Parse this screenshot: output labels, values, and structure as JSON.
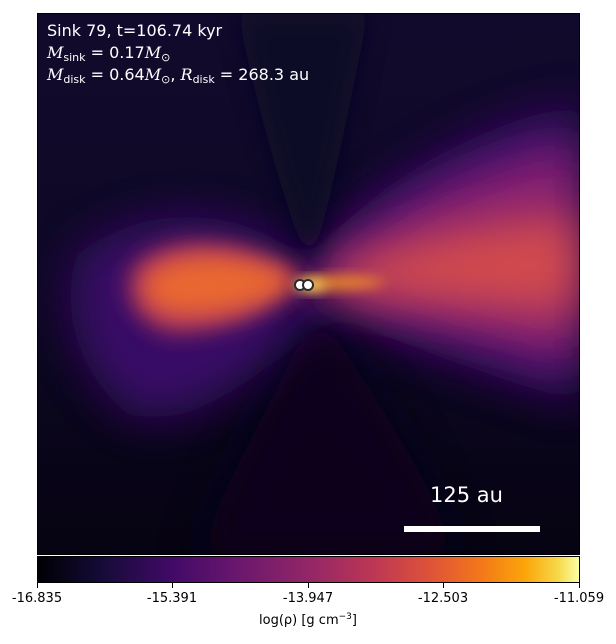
{
  "annotation": {
    "title": "Sink 79, t=106.74 kyr",
    "sink_mass_symbol": "M",
    "sink_mass_sub": "sink",
    "sink_mass_value": "0.17",
    "disk_mass_symbol": "M",
    "disk_mass_sub": "disk",
    "disk_mass_value": "0.64",
    "disk_radius_symbol": "R",
    "disk_radius_sub": "disk",
    "disk_radius_value": "268.3",
    "mass_unit": "M",
    "mass_unit_sub": "⊙",
    "radius_unit": "au",
    "equals": " = "
  },
  "scalebar": {
    "label": "125 au"
  },
  "colorbar": {
    "ticks": [
      "-16.835",
      "-15.391",
      "-13.947",
      "-12.503",
      "-11.059"
    ],
    "label_prefix": "log(ρ) [g cm",
    "label_exp": "−3",
    "label_suffix": "]",
    "colormap": "inferno"
  },
  "sinks": {
    "count": 2
  }
}
